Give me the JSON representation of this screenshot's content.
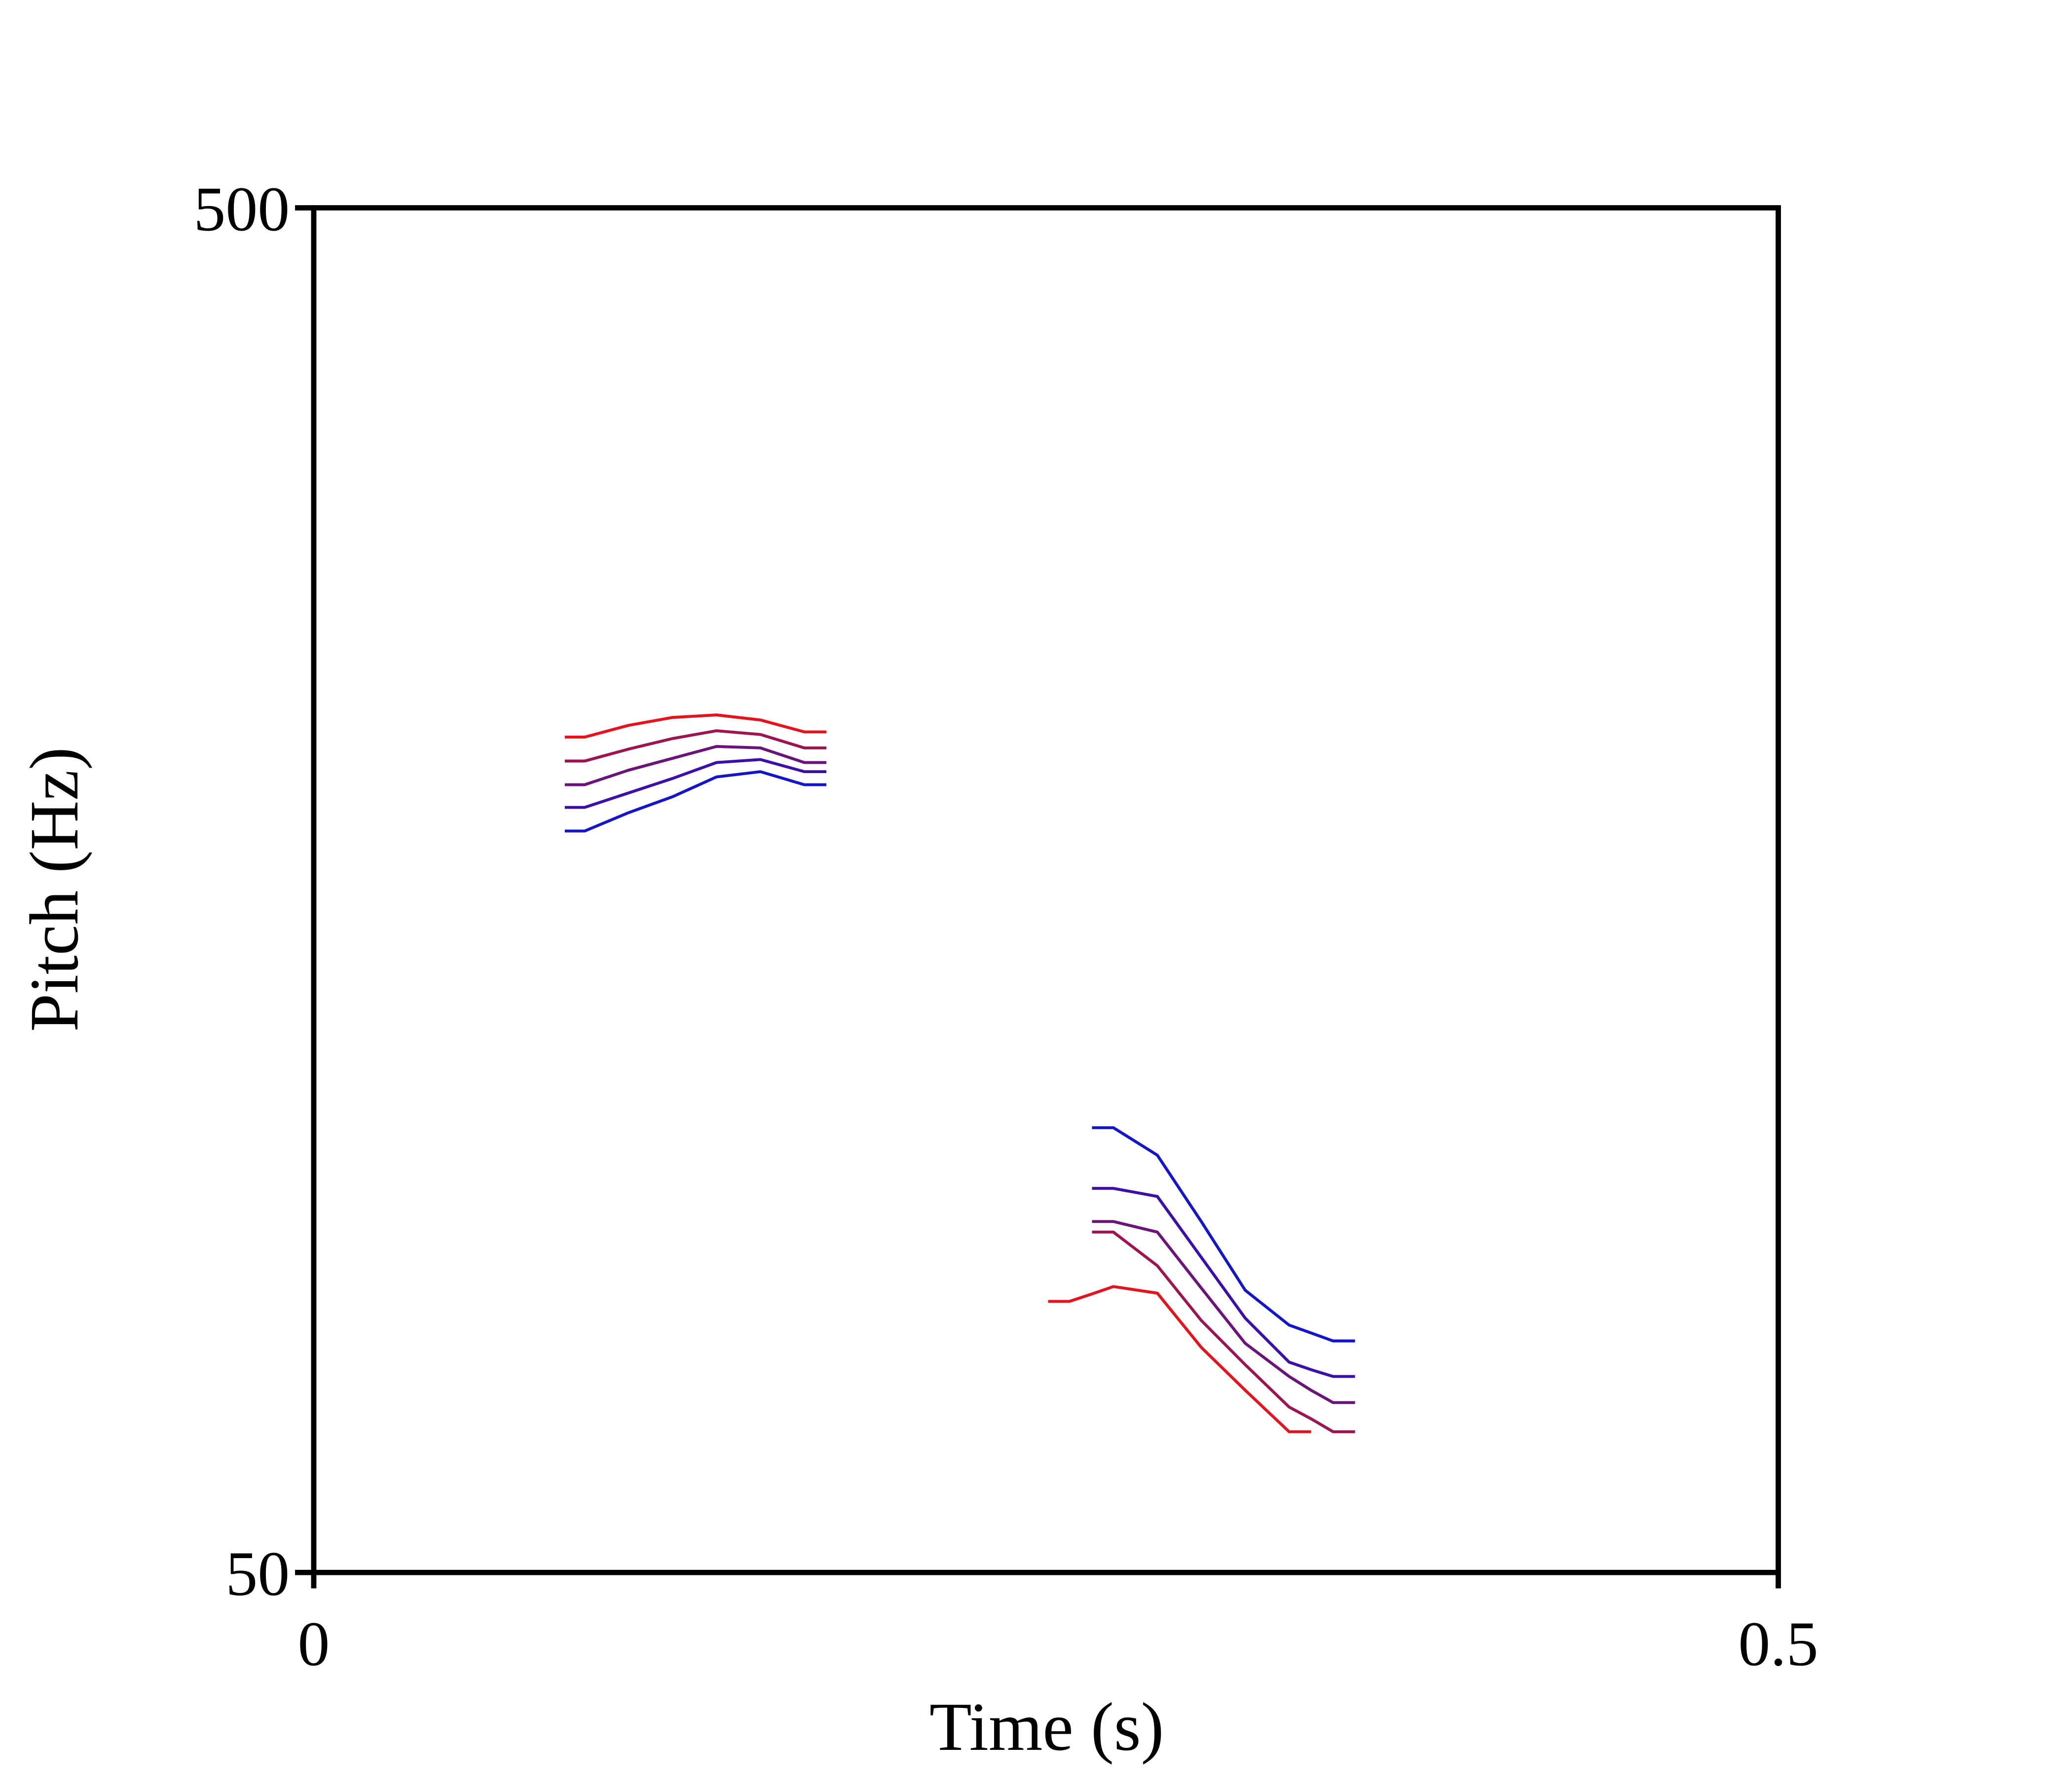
{
  "chart_data": {
    "type": "line",
    "x_label": "Time (s)",
    "y_label": "Pitch (Hz)",
    "xlim": [
      0,
      0.5
    ],
    "ylim": [
      50,
      500
    ],
    "xticks": [
      0,
      0.5
    ],
    "yticks": [
      50,
      500
    ],
    "ylog": true,
    "grid": false,
    "x": [
      0.0857,
      0.0925,
      0.1075,
      0.1225,
      0.1375,
      0.1525,
      0.1675,
      0.175,
      0.21,
      0.2507,
      0.258,
      0.2657,
      0.273,
      0.288,
      0.303,
      0.318,
      0.333,
      0.3405,
      0.348,
      0.3555
    ],
    "series": [
      {
        "color": "#e3141e",
        "values": [
          204.7,
          204.7,
          208.8,
          211.6,
          212.5,
          210.7,
          206.5,
          206.5,
          null,
          79.0,
          79.0,
          80.0,
          81.0,
          80.1,
          73.1,
          68.0,
          63.4,
          63.4,
          null,
          null
        ]
      },
      {
        "color": "#9c1450",
        "values": [
          196.6,
          196.6,
          200.6,
          204.2,
          206.9,
          205.6,
          201.0,
          201.0,
          null,
          null,
          null,
          88.8,
          88.8,
          83.9,
          76.5,
          71.0,
          66.1,
          64.8,
          63.4,
          63.4
        ]
      },
      {
        "color": "#6a147a",
        "values": [
          188.9,
          188.9,
          193.6,
          197.5,
          201.5,
          201.0,
          196.1,
          196.1,
          null,
          null,
          null,
          90.4,
          90.4,
          88.8,
          80.8,
          73.6,
          69.6,
          68.0,
          66.6,
          66.6
        ]
      },
      {
        "color": "#3c10a8",
        "values": [
          181.8,
          181.8,
          186.3,
          190.9,
          196.1,
          197.1,
          193.1,
          193.1,
          null,
          null,
          null,
          95.6,
          95.6,
          94.3,
          85.1,
          76.8,
          71.3,
          70.4,
          69.6,
          69.6
        ]
      },
      {
        "color": "#1414c8",
        "values": [
          174.7,
          174.7,
          180.2,
          185.1,
          191.4,
          193.1,
          188.9,
          188.9,
          null,
          null,
          null,
          105.9,
          105.9,
          101.1,
          90.4,
          80.5,
          75.9,
          74.9,
          73.9,
          73.9
        ]
      }
    ]
  }
}
